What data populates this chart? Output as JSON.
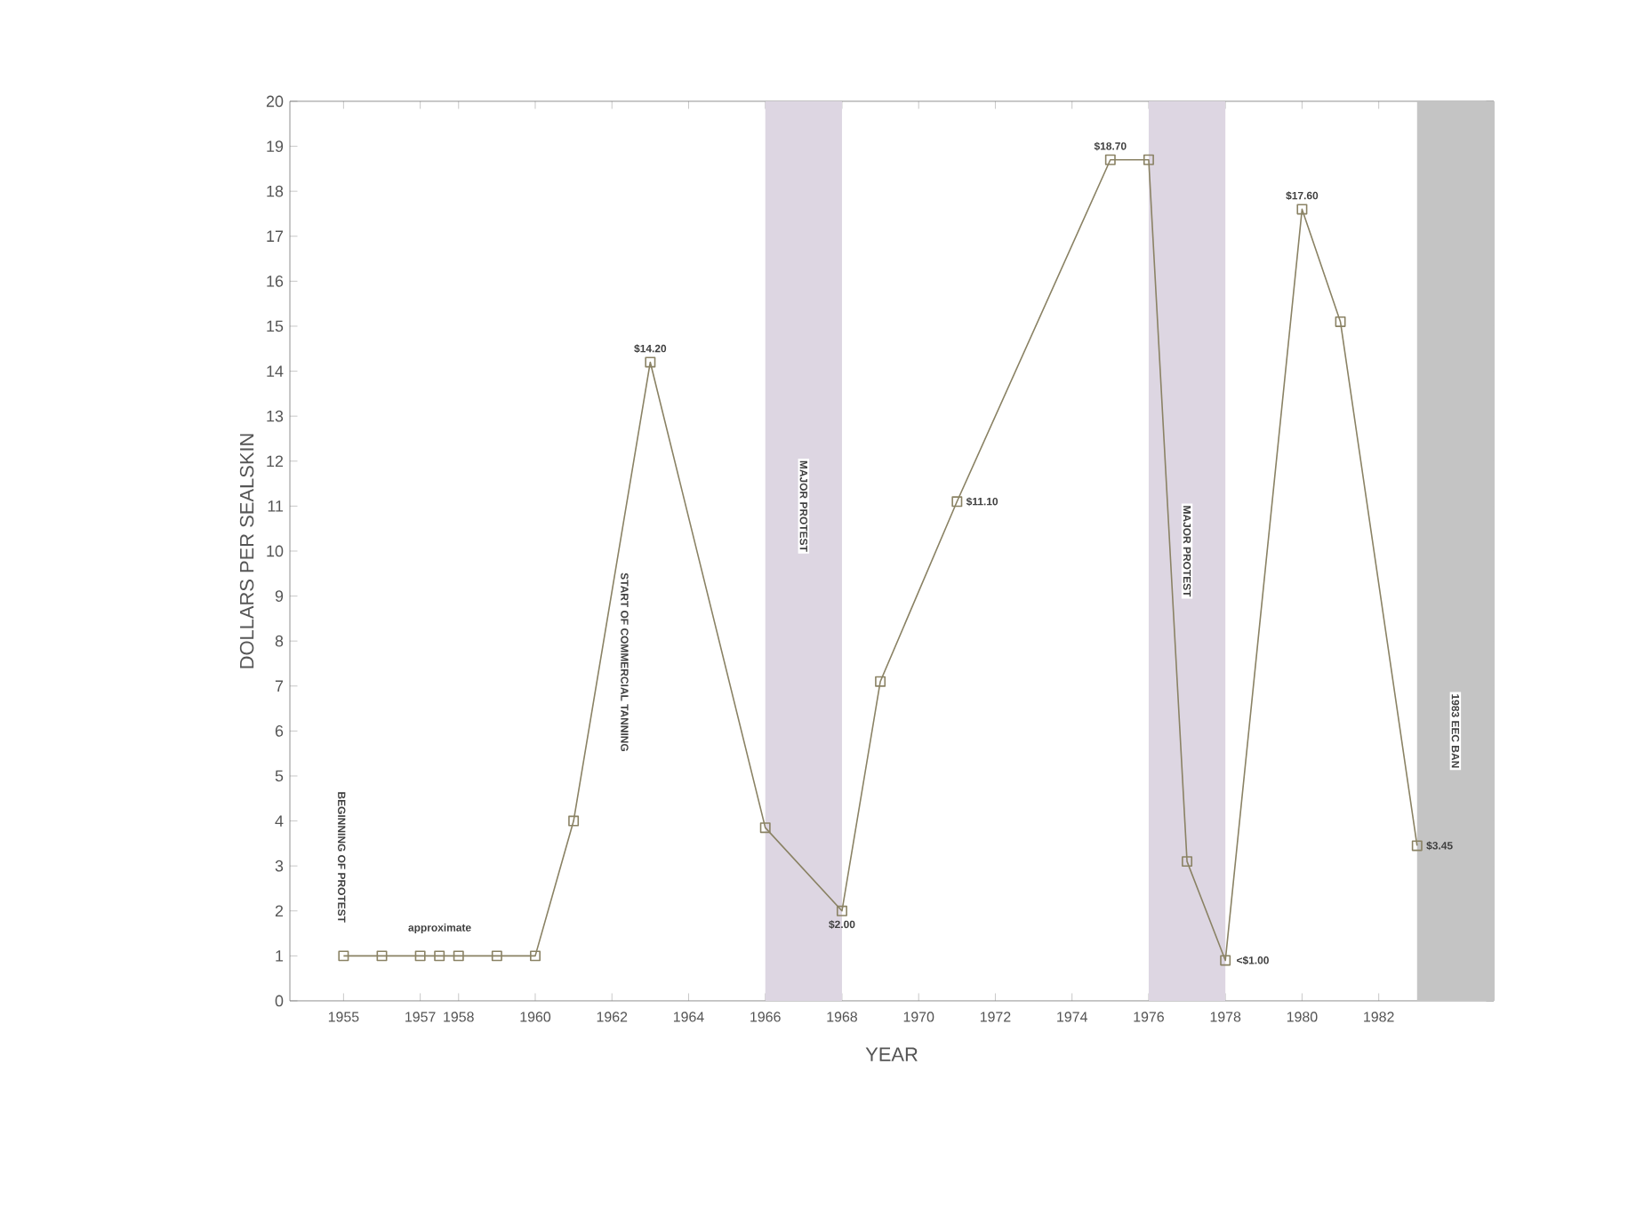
{
  "chart_data": {
    "type": "line",
    "xlabel": "YEAR",
    "ylabel": "DOLLARS PER SEALSKIN",
    "x": [
      1955,
      1956,
      1957,
      1957.5,
      1958,
      1959,
      1960,
      1961,
      1963,
      1966,
      1968,
      1969,
      1971,
      1975,
      1976,
      1977,
      1978,
      1980,
      1981,
      1983
    ],
    "series": [
      {
        "color": "#8a8264",
        "values": [
          1,
          1,
          1,
          1,
          1,
          1,
          1,
          4,
          14.2,
          3.85,
          2,
          7.1,
          11.1,
          18.7,
          18.7,
          3.1,
          0.9,
          17.6,
          15.1,
          3.45
        ],
        "value_labels": [
          null,
          null,
          null,
          null,
          null,
          null,
          null,
          null,
          "$14.20",
          null,
          "$2.00",
          null,
          "$11.10",
          "$18.70",
          null,
          null,
          "<$1.00",
          "$17.60",
          null,
          "$3.45"
        ]
      }
    ],
    "marker": "square",
    "line_style": "solid",
    "grid": false,
    "xlim": [
      1953.6,
      1985
    ],
    "ylim": [
      0,
      20
    ],
    "xticks": [
      1955,
      1957,
      1958,
      1960,
      1962,
      1964,
      1966,
      1968,
      1970,
      1972,
      1974,
      1976,
      1978,
      1980,
      1982
    ],
    "yticks": [
      0,
      1,
      2,
      3,
      4,
      5,
      6,
      7,
      8,
      9,
      10,
      11,
      12,
      13,
      14,
      15,
      16,
      17,
      18,
      19,
      20
    ],
    "bands": [
      {
        "axis": "x",
        "from": 1966,
        "to": 1968,
        "label": "MAJOR PROTEST",
        "color": "#ddd6e2"
      },
      {
        "axis": "x",
        "from": 1976,
        "to": 1978,
        "label": "MAJOR PROTEST",
        "color": "#ddd6e2"
      },
      {
        "axis": "x",
        "from": 1983,
        "to": 1985,
        "label": "1983 EEC BAN",
        "color": "#c4c4c4"
      }
    ],
    "annotations": [
      "BEGINNING OF PROTEST",
      "START OF COMMERCIAL TANNING",
      "approximate"
    ]
  }
}
